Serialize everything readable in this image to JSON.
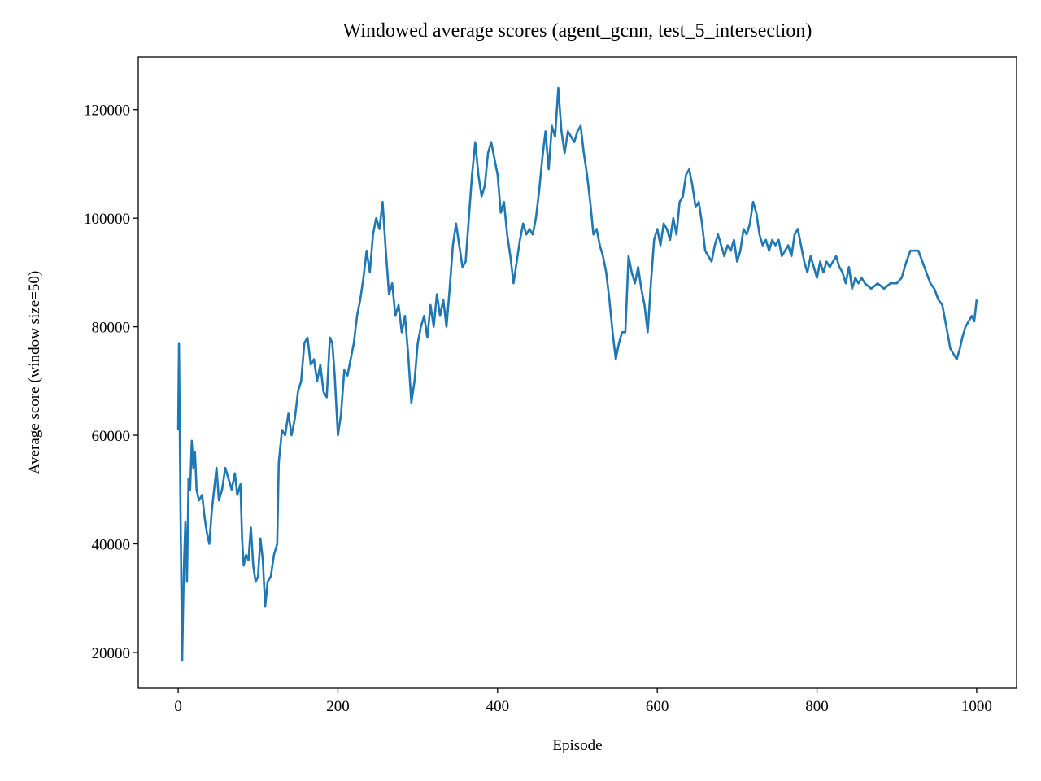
{
  "chart_data": {
    "type": "line",
    "title": "Windowed average scores (agent_gcnn, test_5_intersection)",
    "x_label": "Episode",
    "y_label": "Average score (window size=50)",
    "color": "#1f77b4",
    "xlim": [
      -50,
      1050
    ],
    "ylim": [
      13400,
      129700
    ],
    "xticks": [
      0,
      200,
      400,
      600,
      800,
      1000
    ],
    "yticks": [
      20000,
      40000,
      60000,
      80000,
      100000,
      120000
    ],
    "grid": false,
    "x": [
      0,
      1,
      3,
      5,
      7,
      9,
      11,
      13,
      15,
      17,
      19,
      21,
      23,
      26,
      30,
      33,
      36,
      39,
      42,
      45,
      48,
      51,
      55,
      59,
      63,
      67,
      71,
      74,
      78,
      80,
      82,
      85,
      88,
      91,
      94,
      97,
      100,
      103,
      106,
      109,
      112,
      116,
      120,
      124,
      126,
      130,
      134,
      138,
      142,
      146,
      150,
      154,
      158,
      162,
      166,
      170,
      174,
      178,
      182,
      186,
      190,
      193,
      196,
      200,
      204,
      208,
      212,
      216,
      220,
      224,
      228,
      232,
      236,
      240,
      244,
      248,
      252,
      256,
      260,
      264,
      268,
      272,
      276,
      280,
      284,
      288,
      292,
      296,
      300,
      304,
      308,
      312,
      316,
      320,
      324,
      328,
      332,
      336,
      340,
      344,
      348,
      352,
      356,
      360,
      364,
      368,
      372,
      376,
      380,
      384,
      388,
      392,
      396,
      400,
      404,
      408,
      412,
      416,
      420,
      424,
      428,
      432,
      436,
      440,
      444,
      448,
      452,
      456,
      460,
      464,
      468,
      472,
      476,
      480,
      484,
      488,
      492,
      496,
      500,
      504,
      508,
      512,
      516,
      520,
      524,
      528,
      532,
      536,
      540,
      544,
      548,
      552,
      556,
      560,
      564,
      568,
      572,
      576,
      580,
      584,
      588,
      592,
      596,
      600,
      604,
      608,
      612,
      616,
      620,
      624,
      628,
      632,
      636,
      640,
      644,
      648,
      652,
      656,
      660,
      664,
      668,
      672,
      676,
      680,
      684,
      688,
      692,
      696,
      700,
      704,
      708,
      712,
      716,
      720,
      724,
      728,
      732,
      736,
      740,
      744,
      748,
      752,
      756,
      760,
      764,
      768,
      772,
      776,
      780,
      784,
      788,
      792,
      796,
      800,
      804,
      808,
      812,
      816,
      820,
      824,
      828,
      832,
      836,
      840,
      844,
      848,
      852,
      856,
      860,
      868,
      876,
      884,
      892,
      900,
      906,
      912,
      917,
      922,
      927,
      932,
      937,
      942,
      947,
      952,
      957,
      962,
      967,
      971,
      975,
      979,
      982,
      986,
      990,
      994,
      997,
      1000
    ],
    "values": [
      61000,
      77000,
      45000,
      18500,
      35000,
      44000,
      33000,
      52000,
      50000,
      59000,
      54000,
      57000,
      50000,
      48000,
      49000,
      45000,
      42000,
      40000,
      46000,
      50000,
      54000,
      48000,
      50000,
      54000,
      52000,
      50000,
      53000,
      49000,
      51000,
      41000,
      36000,
      38000,
      37000,
      43000,
      36000,
      33000,
      34000,
      41000,
      37000,
      28500,
      33000,
      34000,
      38000,
      40000,
      55000,
      61000,
      60000,
      64000,
      60000,
      63000,
      68000,
      70000,
      77000,
      78000,
      73000,
      74000,
      70000,
      73000,
      68000,
      67000,
      78000,
      77000,
      71000,
      60000,
      64000,
      72000,
      71000,
      74000,
      77000,
      82000,
      85000,
      89000,
      94000,
      90000,
      97000,
      100000,
      98000,
      103000,
      94000,
      86000,
      88000,
      82000,
      84000,
      79000,
      82000,
      75000,
      66000,
      70000,
      77000,
      80000,
      82000,
      78000,
      84000,
      80000,
      86000,
      82000,
      85000,
      80000,
      87000,
      95000,
      99000,
      95000,
      91000,
      92000,
      100000,
      108000,
      114000,
      108000,
      104000,
      106000,
      112000,
      114000,
      111000,
      108000,
      101000,
      103000,
      97000,
      93000,
      88000,
      92000,
      96000,
      99000,
      97000,
      98000,
      97000,
      100000,
      105000,
      111000,
      116000,
      109000,
      117000,
      115000,
      124000,
      116000,
      112000,
      116000,
      115000,
      114000,
      116000,
      117000,
      112000,
      108000,
      103000,
      97000,
      98000,
      95000,
      93000,
      90000,
      85000,
      79000,
      74000,
      77000,
      79000,
      79000,
      93000,
      90000,
      88000,
      91000,
      87000,
      84000,
      79000,
      88000,
      96000,
      98000,
      95000,
      99000,
      98000,
      96000,
      100000,
      97000,
      103000,
      104000,
      108000,
      109000,
      106000,
      102000,
      103000,
      99000,
      94000,
      93000,
      92000,
      95000,
      97000,
      95000,
      93000,
      95000,
      94000,
      96000,
      92000,
      94000,
      98000,
      97000,
      99000,
      103000,
      101000,
      97000,
      95000,
      96000,
      94000,
      96000,
      95000,
      96000,
      93000,
      94000,
      95000,
      93000,
      97000,
      98000,
      95000,
      92000,
      90000,
      93000,
      91000,
      89000,
      92000,
      90000,
      92000,
      91000,
      92000,
      93000,
      91000,
      90000,
      88000,
      91000,
      87000,
      89000,
      88000,
      89000,
      88000,
      87000,
      88000,
      87000,
      88000,
      88000,
      89000,
      92000,
      94000,
      94000,
      94000,
      92000,
      90000,
      88000,
      87000,
      85000,
      84000,
      80000,
      76000,
      75000,
      74000,
      76000,
      78000,
      80000,
      81000,
      82000,
      81000,
      85000
    ]
  }
}
